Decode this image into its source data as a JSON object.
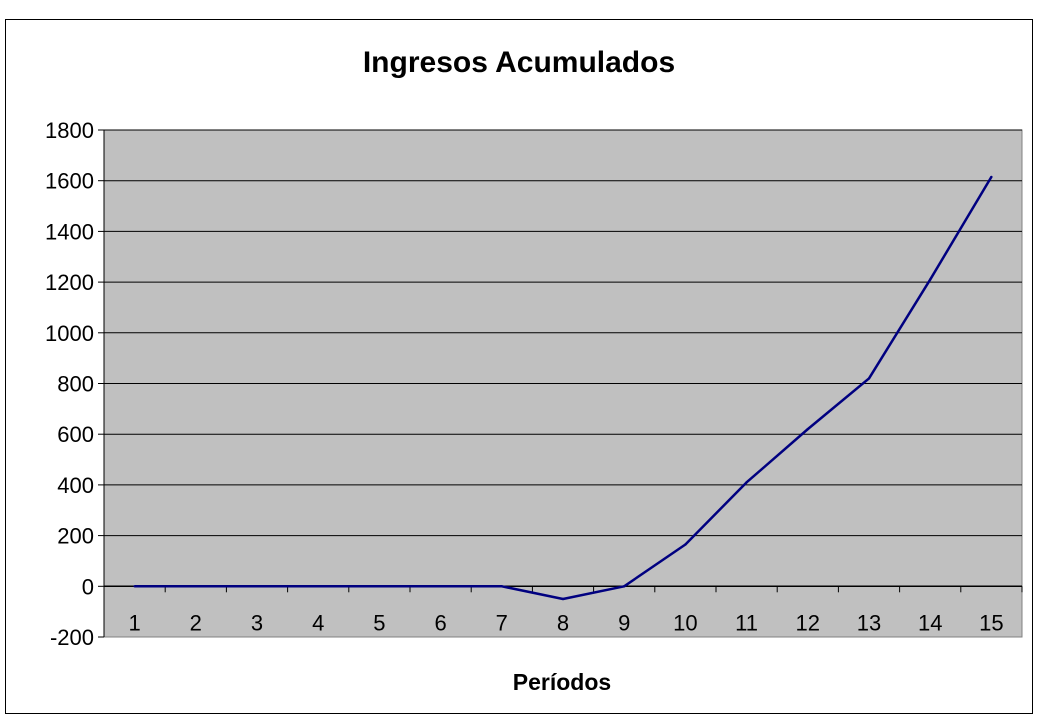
{
  "chart_data": {
    "type": "line",
    "title": "Ingresos Acumulados",
    "xlabel": "Períodos",
    "ylabel": "",
    "categories": [
      "1",
      "2",
      "3",
      "4",
      "5",
      "6",
      "7",
      "8",
      "9",
      "10",
      "11",
      "12",
      "13",
      "14",
      "15"
    ],
    "series": [
      {
        "values": [
          0,
          0,
          0,
          0,
          0,
          0,
          0,
          -50,
          0,
          165,
          410,
          620,
          820,
          1210,
          1615
        ]
      }
    ],
    "ylim": [
      -200,
      1800
    ],
    "yticks": [
      "-200",
      "0",
      "200",
      "400",
      "600",
      "800",
      "1000",
      "1200",
      "1400",
      "1600",
      "1800"
    ],
    "grid": true,
    "legend": "none",
    "colors": {
      "plot_bg": "#c0c0c0",
      "line": "#000080",
      "grid": "#000000"
    }
  }
}
